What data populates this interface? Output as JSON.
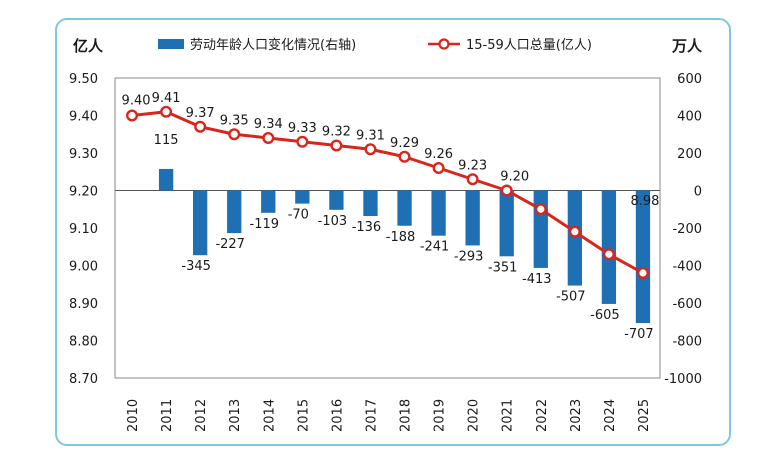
{
  "chart_data": {
    "type": "bar+line",
    "categories": [
      "2010",
      "2011",
      "2012",
      "2013",
      "2014",
      "2015",
      "2016",
      "2017",
      "2018",
      "2019",
      "2020",
      "2021",
      "2022",
      "2023",
      "2024",
      "2025"
    ],
    "series": [
      {
        "name": "劳动年龄人口变化情况(右轴)",
        "type": "bar",
        "axis": "right",
        "color": "#1f6fb5",
        "values": [
          null,
          115,
          -345,
          -227,
          -119,
          -70,
          -103,
          -136,
          -188,
          -241,
          -293,
          -351,
          -413,
          -507,
          -605,
          -707
        ],
        "labels": [
          "",
          "115",
          "-345",
          "-227",
          "-119",
          "-70",
          "-103",
          "-136",
          "-188",
          "-241",
          "-293",
          "-351",
          "-413",
          "-507",
          "-605",
          "-707"
        ]
      },
      {
        "name": "15-59人口总量(亿人)",
        "type": "line",
        "axis": "left",
        "color": "#d9261c",
        "values": [
          9.4,
          9.41,
          9.37,
          9.35,
          9.34,
          9.33,
          9.32,
          9.31,
          9.29,
          9.26,
          9.23,
          9.2,
          9.15,
          9.09,
          9.03,
          8.98
        ],
        "labels": [
          "9.40",
          "9.41",
          "9.37",
          "9.35",
          "9.34",
          "9.33",
          "9.32",
          "9.31",
          "9.29",
          "9.26",
          "9.23",
          "9.20",
          "",
          "",
          "",
          "8.98"
        ]
      }
    ],
    "left_axis": {
      "unit": "亿人",
      "ylim": [
        8.7,
        9.5
      ],
      "ticks": [
        "9.50",
        "9.40",
        "9.30",
        "9.20",
        "9.10",
        "9.00",
        "8.90",
        "8.80",
        "8.70"
      ]
    },
    "right_axis": {
      "unit": "万人",
      "ylim": [
        -1000,
        600
      ],
      "ticks": [
        "600",
        "400",
        "200",
        "0",
        "-200",
        "-400",
        "-600",
        "-800",
        "-1000"
      ]
    },
    "legend_position": "top",
    "grid": false
  }
}
